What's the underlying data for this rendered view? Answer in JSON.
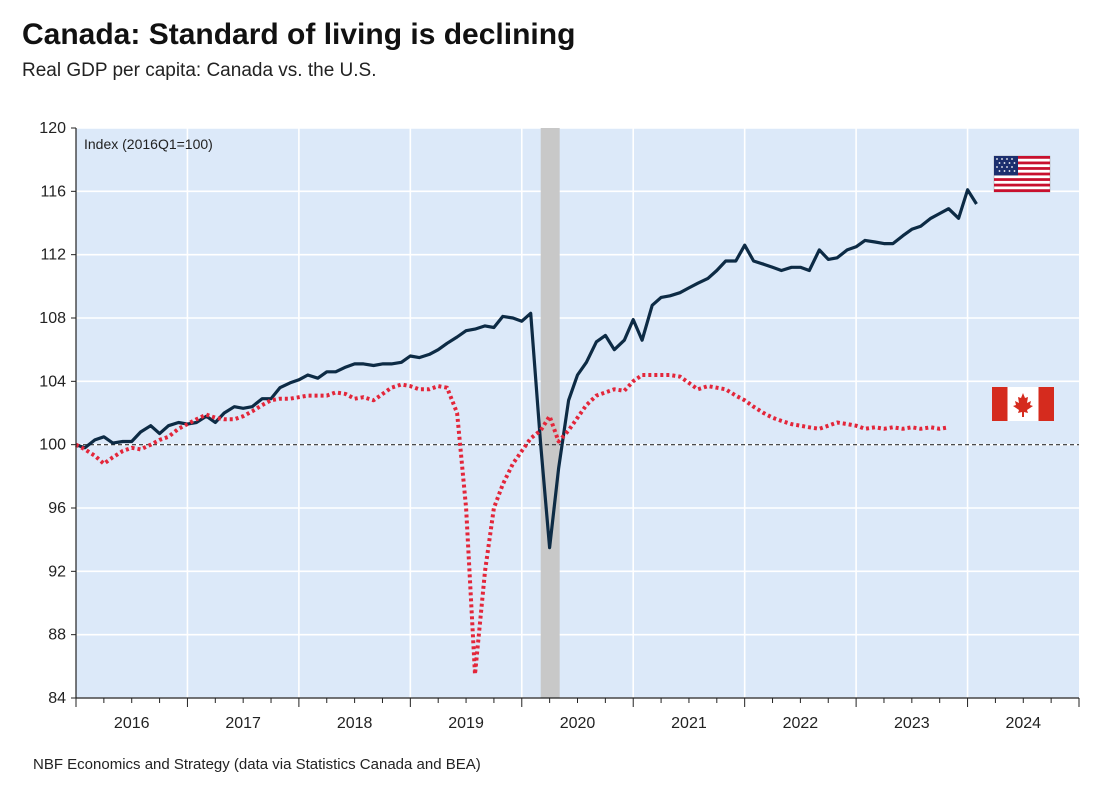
{
  "title": "Canada: Standard of living is declining",
  "subtitle": "Real GDP per capita: Canada vs. the U.S.",
  "source": "NBF Economics and Strategy (data via Statistics Canada and BEA)",
  "colors": {
    "plot_background": "#dce9f9",
    "grid": "#ffffff",
    "us_line": "#0d2b45",
    "canada_line": "#e3263a",
    "recession_band": "#c8c8c8",
    "baseline": "#333333"
  },
  "chart_data": {
    "type": "line",
    "title": "Canada: Standard of living is declining",
    "subtitle": "Real GDP per capita: Canada vs. the U.S.",
    "ylabel": "Index (2016Q1=100)",
    "ylim": [
      84,
      120
    ],
    "yticks": [
      84,
      88,
      92,
      96,
      100,
      104,
      108,
      112,
      116,
      120
    ],
    "xlim": [
      2016.0,
      2025.0
    ],
    "xtick_labels": [
      "2016",
      "2017",
      "2018",
      "2019",
      "2020",
      "2021",
      "2022",
      "2023",
      "2024"
    ],
    "grid": true,
    "reference_line": 100,
    "shaded_period": [
      2020.17,
      2020.34
    ],
    "legend": "flag icons at right end of each series (U.S. flag top, Canada flag lower)",
    "series": [
      {
        "name": "U.S.",
        "style": "solid",
        "x": [
          2016.0,
          2016.08,
          2016.17,
          2016.25,
          2016.33,
          2016.42,
          2016.5,
          2016.58,
          2016.67,
          2016.75,
          2016.83,
          2016.92,
          2017.0,
          2017.08,
          2017.17,
          2017.25,
          2017.33,
          2017.42,
          2017.5,
          2017.58,
          2017.67,
          2017.75,
          2017.83,
          2017.92,
          2018.0,
          2018.08,
          2018.17,
          2018.25,
          2018.33,
          2018.42,
          2018.5,
          2018.58,
          2018.67,
          2018.75,
          2018.83,
          2018.92,
          2019.0,
          2019.08,
          2019.17,
          2019.25,
          2019.33,
          2019.42,
          2019.5,
          2019.58,
          2019.67,
          2019.75,
          2019.83,
          2019.92,
          2020.0,
          2020.08,
          2020.17,
          2020.25,
          2020.33,
          2020.42,
          2020.5,
          2020.58,
          2020.67,
          2020.75,
          2020.83,
          2020.92,
          2021.0,
          2021.08,
          2021.17,
          2021.25,
          2021.33,
          2021.42,
          2021.5,
          2021.58,
          2021.67,
          2021.75,
          2021.83,
          2021.92,
          2022.0,
          2022.08,
          2022.17,
          2022.25,
          2022.33,
          2022.42,
          2022.5,
          2022.58,
          2022.67,
          2022.75,
          2022.83,
          2022.92,
          2023.0,
          2023.08,
          2023.17,
          2023.25,
          2023.33,
          2023.42,
          2023.5,
          2023.58,
          2023.67,
          2023.75,
          2023.83,
          2023.92,
          2024.0,
          2024.08
        ],
        "values": [
          100.0,
          99.8,
          100.3,
          100.5,
          100.1,
          100.2,
          100.2,
          100.8,
          101.2,
          100.7,
          101.2,
          101.4,
          101.3,
          101.4,
          101.8,
          101.4,
          102.0,
          102.4,
          102.3,
          102.4,
          102.9,
          102.9,
          103.6,
          103.9,
          104.1,
          104.4,
          104.2,
          104.6,
          104.6,
          104.9,
          105.1,
          105.1,
          105.0,
          105.1,
          105.1,
          105.2,
          105.6,
          105.5,
          105.7,
          106.0,
          106.4,
          106.8,
          107.2,
          107.3,
          107.5,
          107.4,
          108.1,
          108.0,
          107.8,
          108.3,
          100.0,
          93.5,
          98.5,
          102.8,
          104.4,
          105.2,
          106.5,
          106.9,
          106.0,
          106.6,
          107.9,
          106.6,
          108.8,
          109.3,
          109.4,
          109.6,
          109.9,
          110.2,
          110.5,
          111.0,
          111.6,
          111.6,
          112.6,
          111.6,
          111.4,
          111.2,
          111.0,
          111.2,
          111.2,
          111.0,
          112.3,
          111.7,
          111.8,
          112.3,
          112.5,
          112.9,
          112.8,
          112.7,
          112.7,
          113.2,
          113.6,
          113.8,
          114.3,
          114.6,
          114.9,
          114.3,
          116.1,
          115.2
        ]
      },
      {
        "name": "Canada",
        "style": "dotted",
        "x": [
          2016.0,
          2016.08,
          2016.17,
          2016.25,
          2016.33,
          2016.42,
          2016.5,
          2016.58,
          2016.67,
          2016.75,
          2016.83,
          2016.92,
          2017.0,
          2017.08,
          2017.17,
          2017.25,
          2017.33,
          2017.42,
          2017.5,
          2017.58,
          2017.67,
          2017.75,
          2017.83,
          2017.92,
          2018.0,
          2018.08,
          2018.17,
          2018.25,
          2018.33,
          2018.42,
          2018.5,
          2018.58,
          2018.67,
          2018.75,
          2018.83,
          2018.92,
          2019.0,
          2019.08,
          2019.17,
          2019.25,
          2019.33,
          2019.42,
          2019.5,
          2019.58,
          2019.67,
          2019.75,
          2019.83,
          2019.92,
          2020.0,
          2020.08,
          2020.17,
          2020.25,
          2020.33,
          2020.42,
          2020.5,
          2020.58,
          2020.67,
          2020.75,
          2020.83,
          2020.92,
          2021.0,
          2021.08,
          2021.17,
          2021.25,
          2021.33,
          2021.42,
          2021.5,
          2021.58,
          2021.67,
          2021.75,
          2021.83,
          2021.92,
          2022.0,
          2022.08,
          2022.17,
          2022.25,
          2022.33,
          2022.42,
          2022.5,
          2022.58,
          2022.67,
          2022.75,
          2022.83,
          2022.92,
          2023.0,
          2023.08,
          2023.17,
          2023.25,
          2023.33,
          2023.42,
          2023.5,
          2023.58,
          2023.67,
          2023.75,
          2023.83
        ],
        "values": [
          100.0,
          99.7,
          99.3,
          98.8,
          99.2,
          99.6,
          99.8,
          99.7,
          100.0,
          100.3,
          100.5,
          101.0,
          101.3,
          101.6,
          101.9,
          101.7,
          101.6,
          101.6,
          101.8,
          102.1,
          102.5,
          102.8,
          102.9,
          102.9,
          103.0,
          103.1,
          103.1,
          103.1,
          103.3,
          103.2,
          102.9,
          103.0,
          102.8,
          103.2,
          103.6,
          103.8,
          103.7,
          103.5,
          103.5,
          103.7,
          103.6,
          102.0,
          96.0,
          85.5,
          92.0,
          96.0,
          97.5,
          98.8,
          99.6,
          100.4,
          100.9,
          101.8,
          100.2,
          100.9,
          101.7,
          102.5,
          103.1,
          103.3,
          103.5,
          103.4,
          104.0,
          104.4,
          104.4,
          104.4,
          104.4,
          104.3,
          103.9,
          103.5,
          103.7,
          103.6,
          103.5,
          103.1,
          102.8,
          102.4,
          102.0,
          101.7,
          101.5,
          101.3,
          101.2,
          101.1,
          101.0,
          101.2,
          101.4,
          101.3,
          101.2,
          101.0,
          101.1,
          101.0,
          101.1,
          101.0,
          101.1,
          101.0,
          101.1,
          101.0,
          101.1
        ]
      }
    ]
  }
}
